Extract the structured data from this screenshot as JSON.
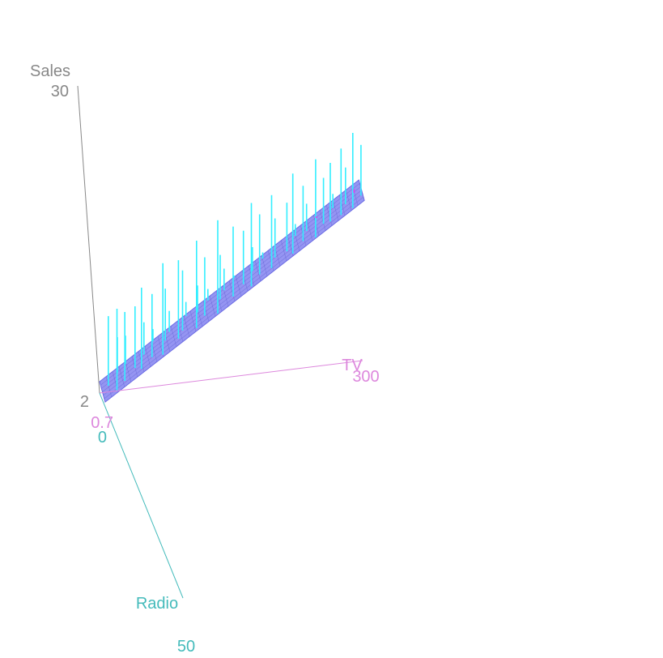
{
  "chart_data": {
    "type": "scatter",
    "subtype": "3d-regression-plane-with-residuals",
    "axes": {
      "z": {
        "label": "Sales",
        "min_label": "2",
        "max_label": "30",
        "range": [
          2,
          30
        ],
        "color": "#888888"
      },
      "x": {
        "label": "TV",
        "min_label": "0.7",
        "max_label": "300",
        "range": [
          0.7,
          300
        ],
        "color": "#dd88dd"
      },
      "y": {
        "label": "Radio",
        "min_label": "0",
        "max_label": "50",
        "range": [
          0,
          50
        ],
        "color": "#44bbbb"
      }
    },
    "plane": {
      "color": "#7777ee"
    },
    "residual_colors": {
      "above": "#33eeff",
      "below": "#ee33ee"
    },
    "residuals": [
      [
        8,
        22,
        9.6
      ],
      [
        15,
        45,
        11.2
      ],
      [
        20,
        10,
        7.1
      ],
      [
        25,
        38,
        10.5
      ],
      [
        30,
        5,
        6.9
      ],
      [
        38,
        28,
        10.4
      ],
      [
        44,
        40,
        12.5
      ],
      [
        50,
        15,
        8.3
      ],
      [
        57,
        33,
        11.5
      ],
      [
        62,
        2,
        7.0
      ],
      [
        68,
        45,
        14.6
      ],
      [
        74,
        20,
        11.2
      ],
      [
        80,
        9,
        8.7
      ],
      [
        87,
        37,
        14.3
      ],
      [
        93,
        27,
        12.9
      ],
      [
        100,
        3,
        9.0
      ],
      [
        107,
        44,
        16.1
      ],
      [
        112,
        14,
        10.8
      ],
      [
        118,
        32,
        14.0
      ],
      [
        125,
        6,
        10.0
      ],
      [
        131,
        48,
        17.8
      ],
      [
        137,
        23,
        13.6
      ],
      [
        143,
        11,
        11.8
      ],
      [
        150,
        38,
        16.6
      ],
      [
        156,
        1,
        10.6
      ],
      [
        163,
        29,
        15.7
      ],
      [
        170,
        46,
        18.8
      ],
      [
        175,
        17,
        13.6
      ],
      [
        181,
        35,
        17.2
      ],
      [
        188,
        8,
        12.6
      ],
      [
        194,
        41,
        19.0
      ],
      [
        200,
        25,
        16.2
      ],
      [
        206,
        4,
        12.9
      ],
      [
        213,
        31,
        17.7
      ],
      [
        218,
        45,
        20.8
      ],
      [
        225,
        13,
        14.9
      ],
      [
        231,
        36,
        19.2
      ],
      [
        237,
        21,
        16.9
      ],
      [
        244,
        48,
        21.9
      ],
      [
        250,
        7,
        14.9
      ],
      [
        255,
        33,
        19.5
      ],
      [
        262,
        39,
        21.0
      ],
      [
        268,
        16,
        17.2
      ],
      [
        274,
        43,
        22.3
      ],
      [
        281,
        28,
        19.9
      ],
      [
        287,
        47,
        23.7
      ],
      [
        293,
        11,
        16.8
      ],
      [
        298,
        35,
        22.0
      ]
    ]
  }
}
